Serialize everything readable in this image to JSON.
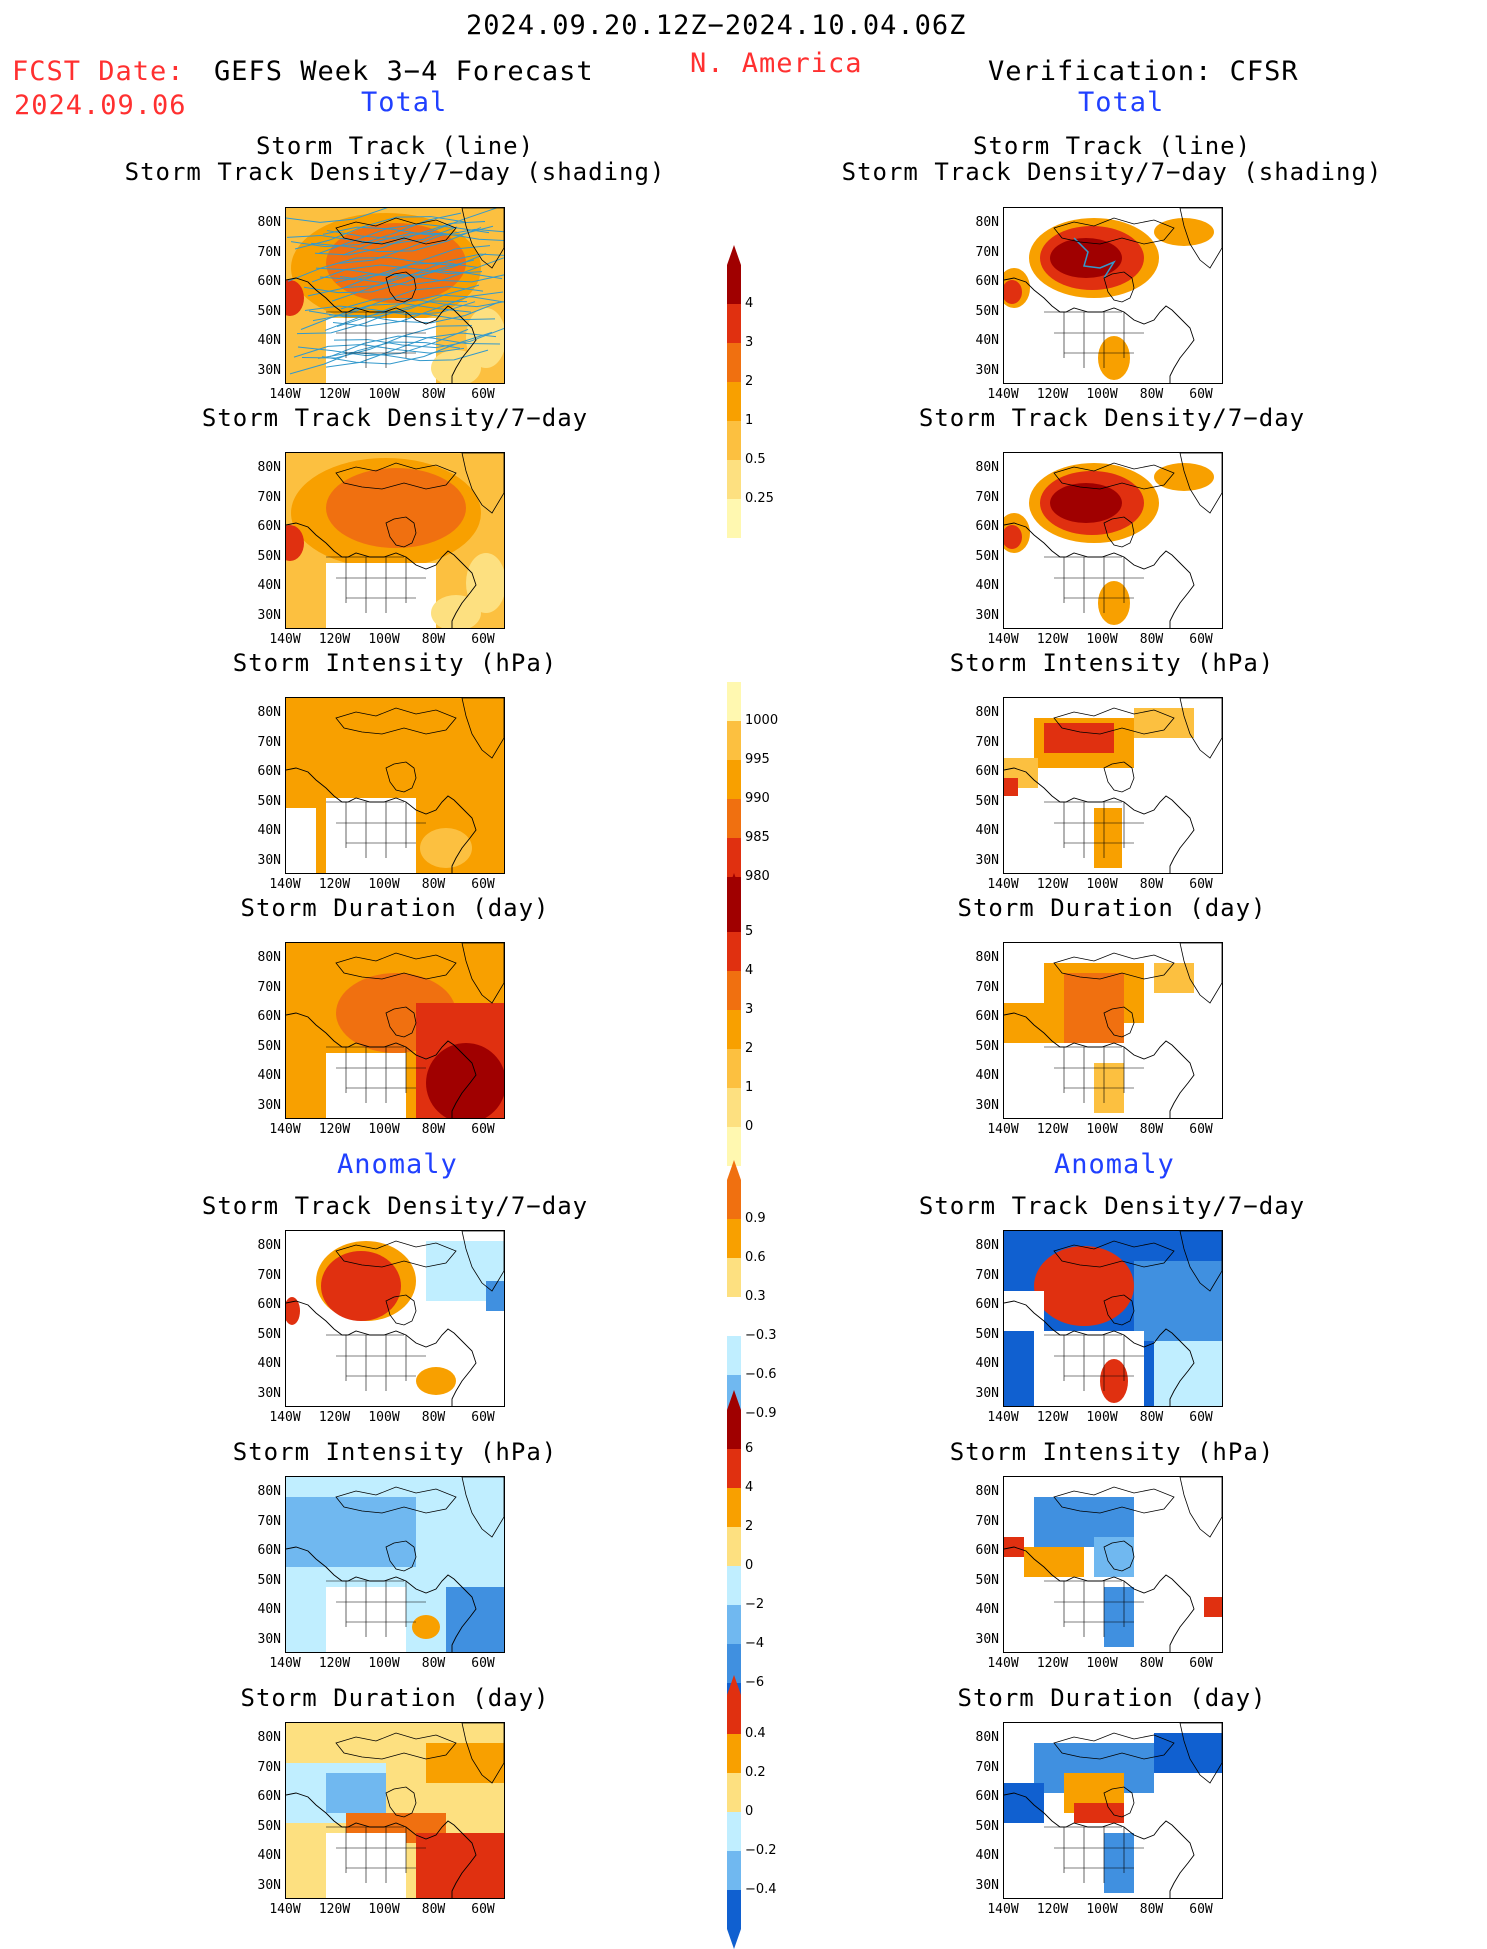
{
  "header": {
    "date_range": "2024.09.20.12Z−2024.10.04.06Z",
    "fcst_label": "FCST Date:",
    "fcst_date": "2024.09.06",
    "model_title": "GEFS Week 3−4 Forecast",
    "region": "N. America",
    "verification": "Verification: CFSR",
    "left_total": "Total",
    "right_total": "Total",
    "left_anomaly": "Anomaly",
    "right_anomaly": "Anomaly"
  },
  "axes": {
    "lat_labels": [
      "80N",
      "70N",
      "60N",
      "50N",
      "40N",
      "30N"
    ],
    "lon_labels": [
      "140W",
      "120W",
      "100W",
      "80W",
      "60W"
    ]
  },
  "panels": {
    "p1_title_a": "Storm Track (line)",
    "p1_title_b": "Storm Track Density/7−day (shading)",
    "p2_title": "Storm Track Density/7−day",
    "p3_title": "Storm Intensity (hPa)",
    "p4_title": "Storm Duration (day)",
    "p5_title": "Storm Track Density/7−day",
    "p6_title": "Storm Intensity (hPa)",
    "p7_title": "Storm Duration (day)"
  },
  "colorbars": {
    "density_total": [
      "4",
      "3",
      "2",
      "1",
      "0.5",
      "0.25"
    ],
    "intensity_total": [
      "1000",
      "995",
      "990",
      "985",
      "980"
    ],
    "duration_total": [
      "5",
      "4",
      "3",
      "2",
      "1",
      "0"
    ],
    "density_anom": [
      "0.9",
      "0.6",
      "0.3",
      "−0.3",
      "−0.6",
      "−0.9"
    ],
    "intensity_anom": [
      "6",
      "4",
      "2",
      "0",
      "−2",
      "−4",
      "−6"
    ],
    "duration_anom": [
      "0.4",
      "0.2",
      "0",
      "−0.2",
      "−0.4"
    ]
  },
  "colors": {
    "light_yellow": "#fff8b0",
    "yellow": "#fde080",
    "orange_light": "#fcc040",
    "orange": "#f8a000",
    "orange_red": "#f07010",
    "red": "#e03010",
    "dark_red": "#a00000",
    "light_blue": "#c0eeff",
    "mid_blue": "#70b8f0",
    "blue": "#4090e0",
    "dark_blue": "#1060d0",
    "track": "#3399cc"
  }
}
